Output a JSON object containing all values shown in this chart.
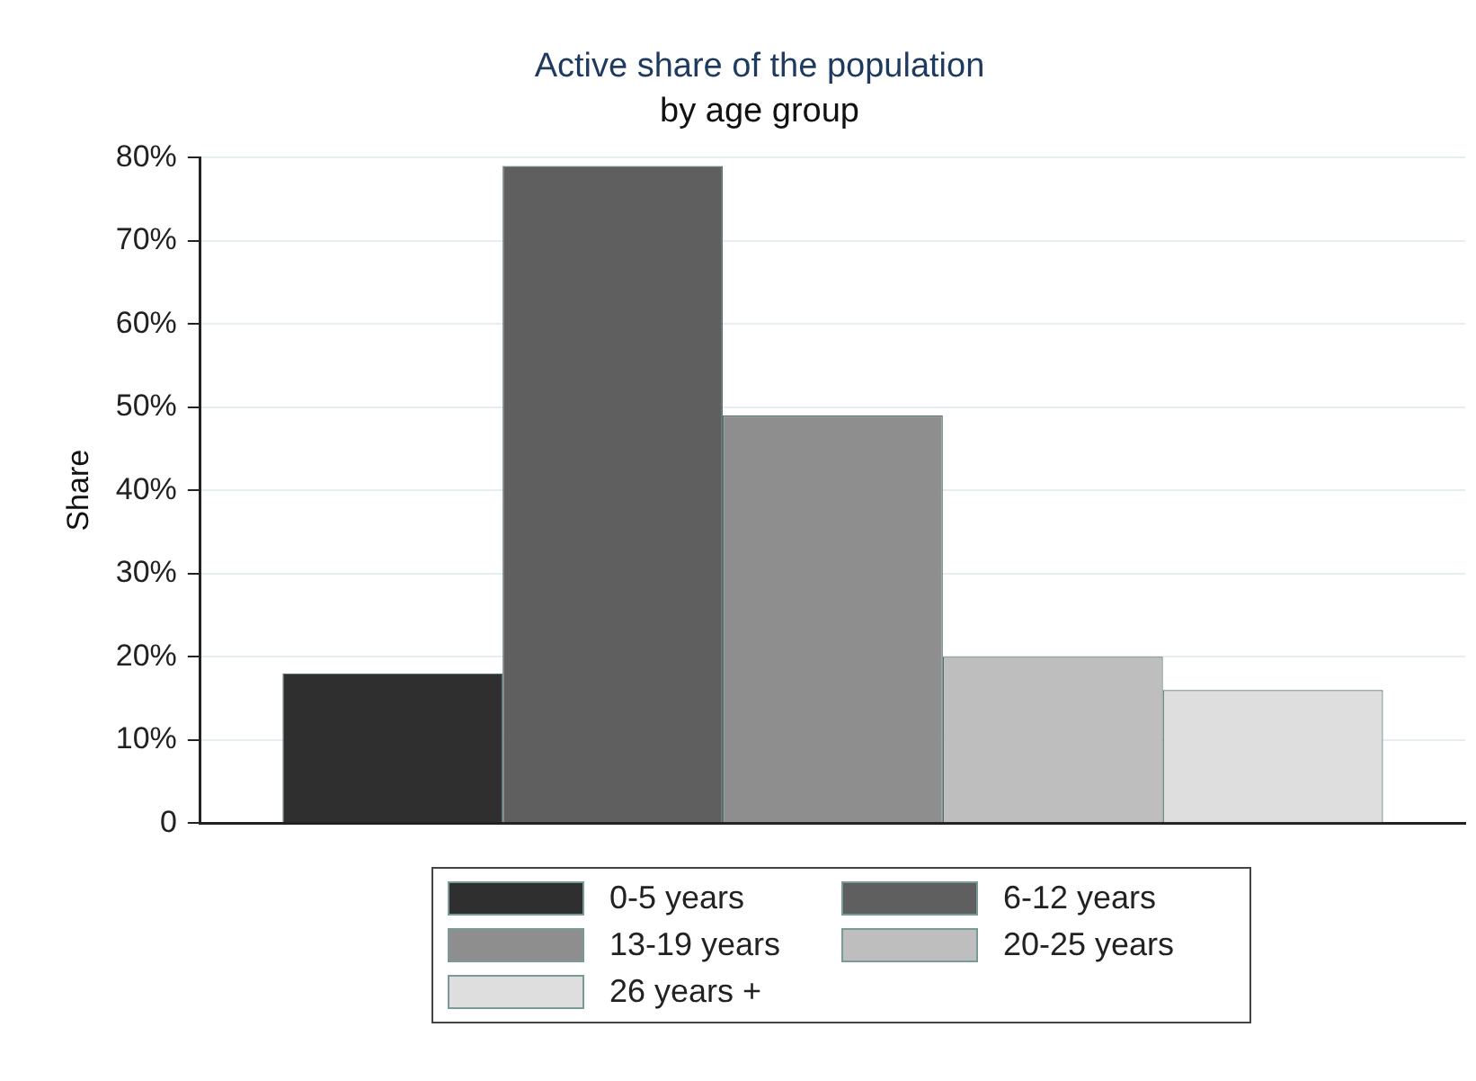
{
  "chart_data": {
    "type": "bar",
    "title": "Active share of the population",
    "subtitle": "by age group",
    "ylabel": "Share",
    "categories": [
      null
    ],
    "series": [
      {
        "name": "0-5 years",
        "color": "#2f2f2f",
        "values": [
          18
        ]
      },
      {
        "name": "6-12 years",
        "color": "#5f5f5f",
        "values": [
          79
        ]
      },
      {
        "name": "13-19 years",
        "color": "#8e8e8e",
        "values": [
          49
        ]
      },
      {
        "name": "20-25 years",
        "color": "#bebebe",
        "values": [
          20
        ]
      },
      {
        "name": "26 years +",
        "color": "#dedede",
        "values": [
          16
        ]
      }
    ],
    "ylim": [
      0,
      80
    ],
    "yticks": [
      0,
      {
        "value": 10,
        "label": "10%"
      },
      {
        "value": 20,
        "label": "20%"
      },
      {
        "value": 30,
        "label": "30%"
      },
      {
        "value": 40,
        "label": "40%"
      },
      {
        "value": 50,
        "label": "50%"
      },
      {
        "value": 60,
        "label": "60%"
      },
      {
        "value": 70,
        "label": "70%"
      },
      {
        "value": 80,
        "label": "80%"
      }
    ],
    "grid": "y",
    "legend": "bottom"
  }
}
